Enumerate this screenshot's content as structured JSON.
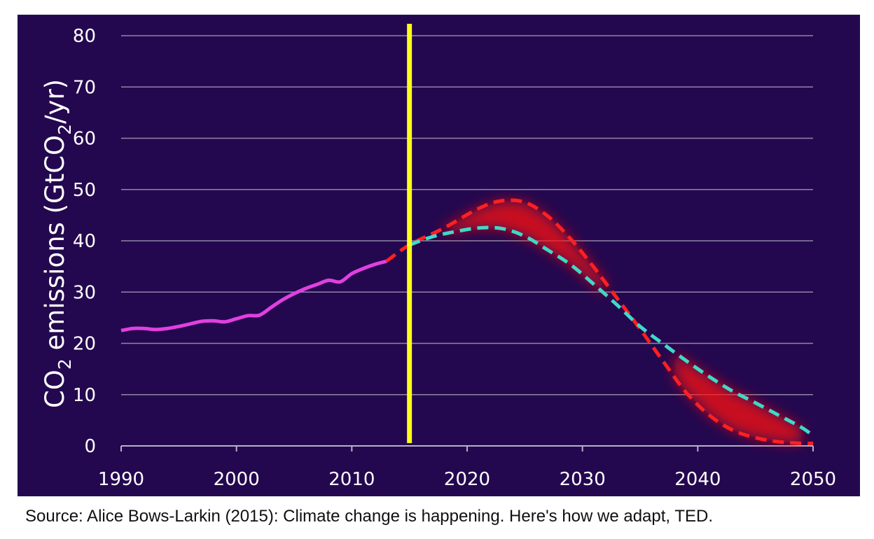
{
  "chart_data": {
    "type": "line",
    "ylabel_parts": [
      "CO",
      "2",
      " emissions (GtCO",
      "2",
      "/yr)"
    ],
    "xlim": [
      1990,
      2050
    ],
    "ylim": [
      0,
      80
    ],
    "x_ticks": [
      "1990",
      "2000",
      "2010",
      "2020",
      "2030",
      "2040",
      "2050"
    ],
    "y_ticks": [
      "0",
      "10",
      "20",
      "30",
      "40",
      "50",
      "60",
      "70",
      "80"
    ],
    "grid": true,
    "background": "#24084f",
    "marker_year": 2015,
    "series": [
      {
        "color": "#e040e0",
        "style": "solid",
        "x": [
          1990,
          1991,
          1992,
          1993,
          1994,
          1995,
          1996,
          1997,
          1998,
          1999,
          2000,
          2001,
          2002,
          2003,
          2004,
          2005,
          2006,
          2007,
          2008,
          2009,
          2010,
          2011,
          2012,
          2013
        ],
        "y": [
          22.5,
          22.9,
          22.9,
          22.7,
          22.9,
          23.3,
          23.8,
          24.3,
          24.4,
          24.2,
          24.8,
          25.4,
          25.5,
          27.0,
          28.5,
          29.7,
          30.7,
          31.5,
          32.3,
          32.0,
          33.6,
          34.6,
          35.4,
          36.0
        ]
      },
      {
        "color": "#ff2020",
        "style": "dashed",
        "x": [
          2013,
          2015,
          2018,
          2021,
          2023,
          2025,
          2027,
          2029,
          2031,
          2033,
          2035,
          2037,
          2039,
          2041,
          2043,
          2045,
          2047,
          2049,
          2050
        ],
        "y": [
          36.0,
          39.2,
          42.5,
          46.3,
          47.8,
          47.5,
          44.8,
          40.3,
          34.8,
          28.8,
          22.8,
          16.5,
          10.4,
          6.0,
          3.1,
          1.6,
          0.8,
          0.5,
          0.5
        ]
      },
      {
        "color": "#40d8c8",
        "style": "dashed",
        "x": [
          2015,
          2017,
          2019,
          2021,
          2023,
          2025,
          2027,
          2029,
          2031,
          2033,
          2035,
          2037,
          2039,
          2041,
          2043,
          2045,
          2047,
          2049,
          2050
        ],
        "y": [
          39.2,
          40.8,
          41.8,
          42.5,
          42.4,
          40.9,
          38.2,
          35.3,
          31.5,
          27.5,
          23.3,
          19.9,
          16.6,
          13.5,
          10.7,
          8.4,
          6.0,
          3.6,
          2.0
        ]
      }
    ]
  },
  "caption": "Source: Alice Bows-Larkin (2015): Climate change is happening. Here's how we adapt, TED."
}
